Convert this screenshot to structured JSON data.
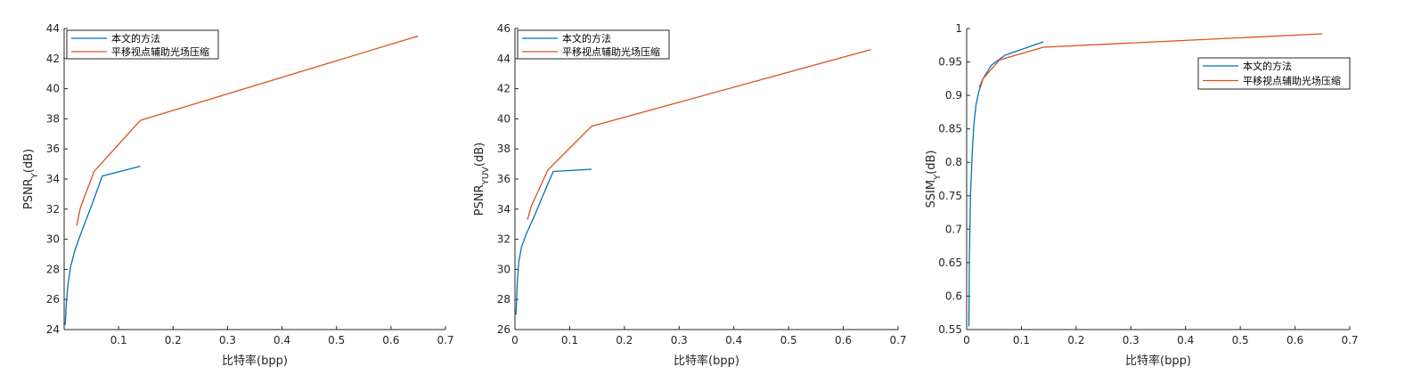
{
  "chart_data": [
    {
      "type": "line",
      "ylabel": "PSNR",
      "ylabel_sub": "Y",
      "ylabel_unit": "(dB)",
      "xlabel": "比特率(bpp)",
      "xlim": [
        0,
        0.7
      ],
      "ylim": [
        24,
        44
      ],
      "xticks": [
        0.1,
        0.2,
        0.3,
        0.4,
        0.5,
        0.6,
        0.7
      ],
      "yticks": [
        24,
        26,
        28,
        30,
        32,
        34,
        36,
        38,
        40,
        42,
        44
      ],
      "legend_position": "top-left",
      "series": [
        {
          "name": "本文的方法",
          "color": "#0072BD",
          "x": [
            0.002,
            0.004,
            0.007,
            0.012,
            0.02,
            0.035,
            0.05,
            0.07,
            0.14
          ],
          "y": [
            24.3,
            25.7,
            27.0,
            28.2,
            29.3,
            30.8,
            32.2,
            34.2,
            34.85
          ]
        },
        {
          "name": "平移视点辅助光场压缩",
          "color": "#D95319",
          "x": [
            0.023,
            0.03,
            0.055,
            0.14,
            0.65
          ],
          "y": [
            30.9,
            32.1,
            34.5,
            37.9,
            43.5
          ]
        }
      ]
    },
    {
      "type": "line",
      "ylabel": "PSNR",
      "ylabel_sub": "YUV",
      "ylabel_unit": "(dB)",
      "xlabel": "比特率(bpp)",
      "xlim": [
        0,
        0.7
      ],
      "ylim": [
        26,
        46
      ],
      "xticks": [
        0,
        0.1,
        0.2,
        0.3,
        0.4,
        0.5,
        0.6,
        0.7
      ],
      "yticks": [
        26,
        28,
        30,
        32,
        34,
        36,
        38,
        40,
        42,
        44,
        46
      ],
      "legend_position": "top-left",
      "series": [
        {
          "name": "本文的方法",
          "color": "#0072BD",
          "x": [
            0.002,
            0.004,
            0.007,
            0.012,
            0.02,
            0.035,
            0.05,
            0.07,
            0.14
          ],
          "y": [
            27.0,
            29.0,
            30.5,
            31.5,
            32.3,
            33.5,
            34.8,
            36.5,
            36.65
          ]
        },
        {
          "name": "平移视点辅助光场压缩",
          "color": "#D95319",
          "x": [
            0.023,
            0.03,
            0.06,
            0.14,
            0.65
          ],
          "y": [
            33.3,
            34.2,
            36.6,
            39.5,
            44.6
          ]
        }
      ]
    },
    {
      "type": "line",
      "ylabel": "SSIM",
      "ylabel_sub": "Y",
      "ylabel_unit": "(dB)",
      "xlabel": "比特率(bpp)",
      "xlim": [
        0,
        0.7
      ],
      "ylim": [
        0.55,
        1
      ],
      "xticks": [
        0,
        0.1,
        0.2,
        0.3,
        0.4,
        0.5,
        0.6,
        0.7
      ],
      "yticks": [
        0.55,
        0.6,
        0.65,
        0.7,
        0.75,
        0.8,
        0.85,
        0.9,
        0.95,
        1
      ],
      "legend_position": "top-right",
      "series": [
        {
          "name": "本文的方法",
          "color": "#0072BD",
          "x": [
            0.004,
            0.005,
            0.007,
            0.01,
            0.013,
            0.017,
            0.022,
            0.03,
            0.045,
            0.07,
            0.14
          ],
          "y": [
            0.555,
            0.66,
            0.75,
            0.81,
            0.855,
            0.885,
            0.905,
            0.925,
            0.945,
            0.96,
            0.98
          ]
        },
        {
          "name": "平移视点辅助光场压缩",
          "color": "#D95319",
          "x": [
            0.023,
            0.03,
            0.06,
            0.14,
            0.65
          ],
          "y": [
            0.912,
            0.925,
            0.953,
            0.972,
            0.992
          ]
        }
      ]
    }
  ]
}
